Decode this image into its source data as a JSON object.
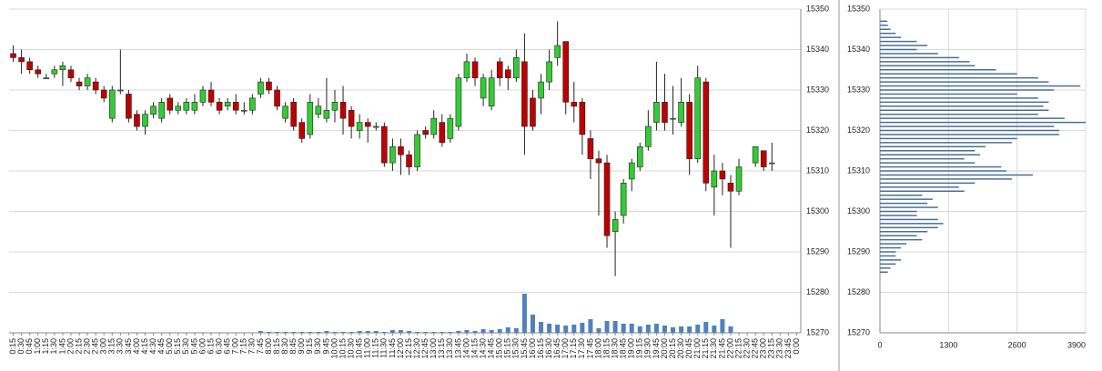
{
  "chart_data": [
    {
      "type": "candlestick",
      "categories": [
        "0:15",
        "0:30",
        "0:45",
        "1:00",
        "1:15",
        "1:30",
        "1:45",
        "2:00",
        "2:15",
        "2:30",
        "2:45",
        "3:00",
        "3:15",
        "3:30",
        "3:45",
        "4:00",
        "4:15",
        "4:30",
        "4:45",
        "5:00",
        "5:15",
        "5:30",
        "5:45",
        "6:00",
        "6:15",
        "6:30",
        "6:45",
        "7:00",
        "7:15",
        "7:30",
        "7:45",
        "8:00",
        "8:15",
        "8:30",
        "8:45",
        "9:00",
        "9:15",
        "9:30",
        "9:45",
        "10:00",
        "10:15",
        "10:30",
        "10:45",
        "11:00",
        "11:15",
        "11:30",
        "11:45",
        "12:00",
        "12:15",
        "12:30",
        "12:45",
        "13:00",
        "13:15",
        "13:30",
        "13:45",
        "14:00",
        "14:15",
        "14:30",
        "14:45",
        "15:00",
        "15:15",
        "15:30",
        "15:45",
        "16:00",
        "16:15",
        "16:30",
        "16:45",
        "17:00",
        "17:15",
        "17:30",
        "17:45",
        "18:00",
        "18:15",
        "18:30",
        "18:45",
        "19:00",
        "19:15",
        "19:30",
        "19:45",
        "20:00",
        "20:15",
        "20:30",
        "20:45",
        "21:00",
        "21:15",
        "21:30",
        "21:45",
        "22:00",
        "22:15",
        "22:30",
        "22:45",
        "23:00",
        "23:15",
        "23:30",
        "23:45",
        "0:00"
      ],
      "open": [
        15339,
        15338,
        15337,
        15335,
        15333,
        15334,
        15335,
        15335,
        15332,
        15331,
        15332,
        15330,
        15323,
        15330,
        15329,
        15324,
        15321,
        15324,
        15323,
        15328,
        15325,
        15325,
        15325,
        15327,
        15330,
        15327,
        15326,
        15327,
        15325,
        15325,
        15329,
        15332,
        15330,
        15323,
        15327,
        15322,
        15319,
        15324,
        15323,
        15325,
        15327,
        15325,
        15320,
        15322,
        15321,
        15321,
        15312,
        15316,
        15314,
        15311,
        15320,
        15319,
        15322,
        15318,
        15321,
        15333,
        15337,
        15328,
        15326,
        15337,
        15335,
        15333,
        15337,
        15328,
        15328,
        15332,
        15338,
        15342,
        15327,
        15327,
        15318,
        15313,
        15312,
        15295,
        15299,
        15308,
        15311,
        15316,
        15322,
        15327,
        15323,
        15322,
        15327,
        15313,
        15332,
        15306,
        15310,
        15307,
        15305,
        null,
        15312,
        15315,
        15312,
        null,
        null,
        null
      ],
      "high": [
        15341,
        15340,
        15338,
        15336,
        15334,
        15336,
        15337,
        15336,
        15333,
        15334,
        15333,
        15331,
        15331,
        15340,
        15330,
        15325,
        15325,
        15327,
        15328,
        15329,
        15327,
        15328,
        15329,
        15331,
        15332,
        15328,
        15328,
        15329,
        15327,
        15329,
        15333,
        15333,
        15331,
        15327,
        15328,
        15323,
        15329,
        15328,
        15333,
        15330,
        15331,
        15326,
        15324,
        15323,
        15322,
        15322,
        15318,
        15318,
        15315,
        15320,
        15321,
        15325,
        15324,
        15324,
        15334,
        15339,
        15338,
        15334,
        15335,
        15338,
        15336,
        15340,
        15344,
        15330,
        15334,
        15340,
        15347,
        15342,
        15332,
        15328,
        15320,
        15315,
        15314,
        15300,
        15308,
        15313,
        15317,
        15325,
        15337,
        15334,
        15331,
        15333,
        15329,
        15336,
        15333,
        15314,
        15312,
        15309,
        15313,
        null,
        15316,
        15315,
        15317,
        null,
        null,
        null
      ],
      "low": [
        15337,
        15334,
        15334,
        15333,
        15333,
        15333,
        15331,
        15332,
        15330,
        15330,
        15329,
        15327,
        15322,
        15329,
        15322,
        15320,
        15319,
        15323,
        15322,
        15324,
        15324,
        15324,
        15324,
        15326,
        15326,
        15324,
        15325,
        15324,
        15324,
        15324,
        15328,
        15329,
        15325,
        15322,
        15320,
        15317,
        15318,
        15323,
        15322,
        15322,
        15319,
        15318,
        15318,
        15317,
        15320,
        15311,
        15310,
        15309,
        15309,
        15310,
        15318,
        15318,
        15316,
        15317,
        15320,
        15332,
        15331,
        15326,
        15325,
        15331,
        15330,
        15332,
        15314,
        15320,
        15324,
        15330,
        15336,
        15324,
        15322,
        15314,
        15308,
        15299,
        15291,
        15284,
        15297,
        15305,
        15310,
        15315,
        15320,
        15320,
        15319,
        15321,
        15309,
        15312,
        15305,
        15299,
        15304,
        15291,
        15304,
        null,
        15311,
        15310,
        15310,
        null,
        null,
        null
      ],
      "close": [
        15338,
        15337,
        15335,
        15334,
        15333,
        15335,
        15336,
        15333,
        15331,
        15333,
        15330,
        15328,
        15330,
        15330,
        15323,
        15321,
        15324,
        15326,
        15327,
        15325,
        15326,
        15327,
        15327,
        15330,
        15327,
        15325,
        15327,
        15325,
        15325,
        15328,
        15332,
        15330,
        15326,
        15326,
        15321,
        15318,
        15327,
        15326,
        15325,
        15327,
        15323,
        15321,
        15322,
        15321,
        15321,
        15312,
        15316,
        15314,
        15311,
        15319,
        15319,
        15323,
        15317,
        15323,
        15333,
        15337,
        15333,
        15333,
        15333,
        15333,
        15333,
        15338,
        15321,
        15321,
        15332,
        15337,
        15341,
        15327,
        15326,
        15319,
        15313,
        15312,
        15294,
        15298,
        15307,
        15312,
        15316,
        15321,
        15327,
        15322,
        15323,
        15327,
        15313,
        15333,
        15307,
        15310,
        15308,
        15305,
        15311,
        null,
        15316,
        15311,
        15312,
        null,
        null,
        null
      ],
      "volume": [
        0,
        0,
        0,
        0,
        0,
        0,
        0,
        0,
        0,
        0,
        0,
        0,
        0,
        0,
        0,
        0,
        0,
        0,
        0,
        0,
        0,
        0,
        0,
        0,
        0,
        0,
        0,
        0,
        0,
        0,
        2,
        1,
        1,
        1,
        1,
        1,
        1,
        1,
        2,
        1,
        1,
        1,
        2,
        2,
        2,
        1,
        3,
        3,
        2,
        1,
        1,
        1,
        1,
        1,
        2,
        3,
        2,
        4,
        3,
        4,
        6,
        5,
        43,
        20,
        12,
        10,
        9,
        8,
        9,
        11,
        15,
        5,
        13,
        13,
        10,
        10,
        7,
        9,
        10,
        8,
        6,
        7,
        7,
        9,
        12,
        8,
        15,
        7,
        null,
        null,
        null,
        null,
        null,
        null,
        null,
        null
      ],
      "up_color": "#33cc33",
      "down_color": "#c00000",
      "volume_color": "#4f81bd",
      "ylim": [
        15270,
        15350
      ],
      "yticks": [
        15270,
        15280,
        15290,
        15300,
        15310,
        15320,
        15330,
        15340,
        15350
      ],
      "grid": true
    },
    {
      "type": "barh",
      "y": [
        15285,
        15286,
        15287,
        15288,
        15289,
        15290,
        15291,
        15292,
        15293,
        15294,
        15295,
        15296,
        15297,
        15298,
        15299,
        15300,
        15301,
        15302,
        15303,
        15304,
        15305,
        15306,
        15307,
        15308,
        15309,
        15310,
        15311,
        15312,
        15313,
        15314,
        15315,
        15316,
        15317,
        15318,
        15319,
        15320,
        15321,
        15322,
        15323,
        15324,
        15325,
        15326,
        15327,
        15328,
        15329,
        15330,
        15331,
        15332,
        15333,
        15334,
        15335,
        15336,
        15337,
        15338,
        15339,
        15340,
        15341,
        15342,
        15343,
        15344,
        15345,
        15346,
        15347
      ],
      "values": [
        150,
        200,
        300,
        400,
        300,
        300,
        400,
        500,
        800,
        700,
        900,
        1100,
        1200,
        1100,
        700,
        700,
        1100,
        900,
        1000,
        800,
        1600,
        1500,
        1800,
        2500,
        2900,
        2400,
        2300,
        1800,
        1600,
        1900,
        1800,
        2000,
        2500,
        2600,
        3400,
        3400,
        3300,
        3900,
        3500,
        3000,
        3200,
        3100,
        3200,
        3000,
        2600,
        3300,
        3800,
        3200,
        3000,
        2600,
        2200,
        1800,
        1700,
        1500,
        1100,
        700,
        900,
        700,
        400,
        300,
        200,
        150,
        140
      ],
      "color": "#4a6f95",
      "xlim": [
        0,
        3900
      ],
      "xticks": [
        0,
        1300,
        2600,
        3900
      ],
      "ylim": [
        15270,
        15350
      ],
      "yticks": [
        15270,
        15280,
        15290,
        15300,
        15310,
        15320,
        15330,
        15340,
        15350
      ],
      "grid": true
    }
  ]
}
